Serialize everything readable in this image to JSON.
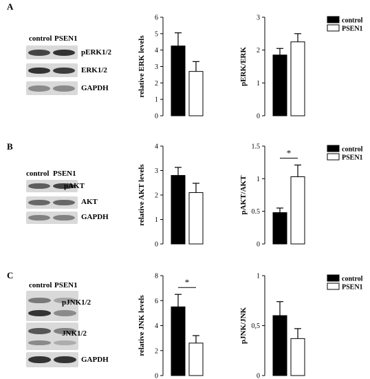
{
  "panels": [
    {
      "letter": "A",
      "blot": {
        "lane_labels": [
          "control",
          "PSEN1"
        ],
        "rows": [
          {
            "label": "pERK1/2",
            "bands": [
              0.85,
              0.95
            ]
          },
          {
            "label": "ERK1/2",
            "bands": [
              0.95,
              0.9
            ]
          },
          {
            "label": "GAPDH",
            "bands": [
              0.45,
              0.45
            ]
          }
        ]
      }
    },
    {
      "letter": "B",
      "blot": {
        "lane_labels": [
          "control",
          "PSEN1"
        ],
        "rows": [
          {
            "label": "pAKT",
            "bands": [
              0.7,
              0.85
            ]
          },
          {
            "label": "AKT",
            "bands": [
              0.65,
              0.65
            ]
          },
          {
            "label": "GAPDH",
            "bands": [
              0.5,
              0.5
            ]
          }
        ]
      }
    },
    {
      "letter": "C",
      "blot": {
        "lane_labels": [
          "control",
          "PSEN1"
        ],
        "rows": [
          {
            "label": "pJNK1/2",
            "bands": [
              0.95,
              0.45
            ],
            "double": true
          },
          {
            "label": "JNK1/2",
            "bands": [
              0.75,
              0.5
            ],
            "double": true
          },
          {
            "label": "GAPDH",
            "bands": [
              0.95,
              0.95
            ]
          }
        ]
      }
    }
  ],
  "chart_data": [
    {
      "type": "bar",
      "panel": "A",
      "categories": [
        "control",
        "PSEN1"
      ],
      "values": [
        4.25,
        2.7
      ],
      "errors": [
        0.8,
        0.6
      ],
      "ylabel": "relative ERK levels",
      "ylim": [
        0,
        6
      ],
      "yticks": [
        "0",
        "1",
        "2",
        "3",
        "4",
        "5",
        "6"
      ],
      "significance": "",
      "legend": false
    },
    {
      "type": "bar",
      "panel": "A",
      "categories": [
        "control",
        "PSEN1"
      ],
      "values": [
        1.85,
        2.25
      ],
      "errors": [
        0.2,
        0.25
      ],
      "ylabel": "pERK/ERK",
      "ylim": [
        0,
        3
      ],
      "yticks": [
        "0",
        "1",
        "2",
        "3"
      ],
      "significance": "",
      "legend": true,
      "legend_labels": [
        "control",
        "PSEN1"
      ]
    },
    {
      "type": "bar",
      "panel": "B",
      "categories": [
        "control",
        "PSEN1"
      ],
      "values": [
        2.8,
        2.1
      ],
      "errors": [
        0.33,
        0.38
      ],
      "ylabel": "relative AKT levels",
      "ylim": [
        0,
        4
      ],
      "yticks": [
        "0",
        "1",
        "2",
        "3",
        "4"
      ],
      "significance": "",
      "legend": false
    },
    {
      "type": "bar",
      "panel": "B",
      "categories": [
        "control",
        "PSEN1"
      ],
      "values": [
        0.48,
        1.03
      ],
      "errors": [
        0.07,
        0.18
      ],
      "ylabel": "pAKT/AKT",
      "ylim": [
        0,
        1.5
      ],
      "yticks": [
        "0",
        "0.5",
        "1",
        "1.5"
      ],
      "significance": "*",
      "legend": true,
      "legend_labels": [
        "control",
        "PSEN1"
      ]
    },
    {
      "type": "bar",
      "panel": "C",
      "categories": [
        "control",
        "PSEN1"
      ],
      "values": [
        5.5,
        2.6
      ],
      "errors": [
        1.0,
        0.6
      ],
      "ylabel": "relative JNK levels",
      "ylim": [
        0,
        8
      ],
      "yticks": [
        "0",
        "2",
        "4",
        "6",
        "8"
      ],
      "significance": "*",
      "legend": false
    },
    {
      "type": "bar",
      "panel": "C",
      "categories": [
        "control",
        "PSEN1"
      ],
      "values": [
        0.6,
        0.37
      ],
      "errors": [
        0.14,
        0.1
      ],
      "ylabel": "pJNK/JNK",
      "ylim": [
        0,
        1
      ],
      "yticks": [
        "0",
        "0,5",
        "1"
      ],
      "significance": "",
      "legend": true,
      "legend_labels": [
        "control",
        "PSEN1"
      ]
    }
  ],
  "colors": {
    "control_fill": "#000000",
    "psen1_fill": "#ffffff",
    "axis": "#000000",
    "blot_background": "#d9d9d9",
    "band": "#2a2a2a"
  }
}
